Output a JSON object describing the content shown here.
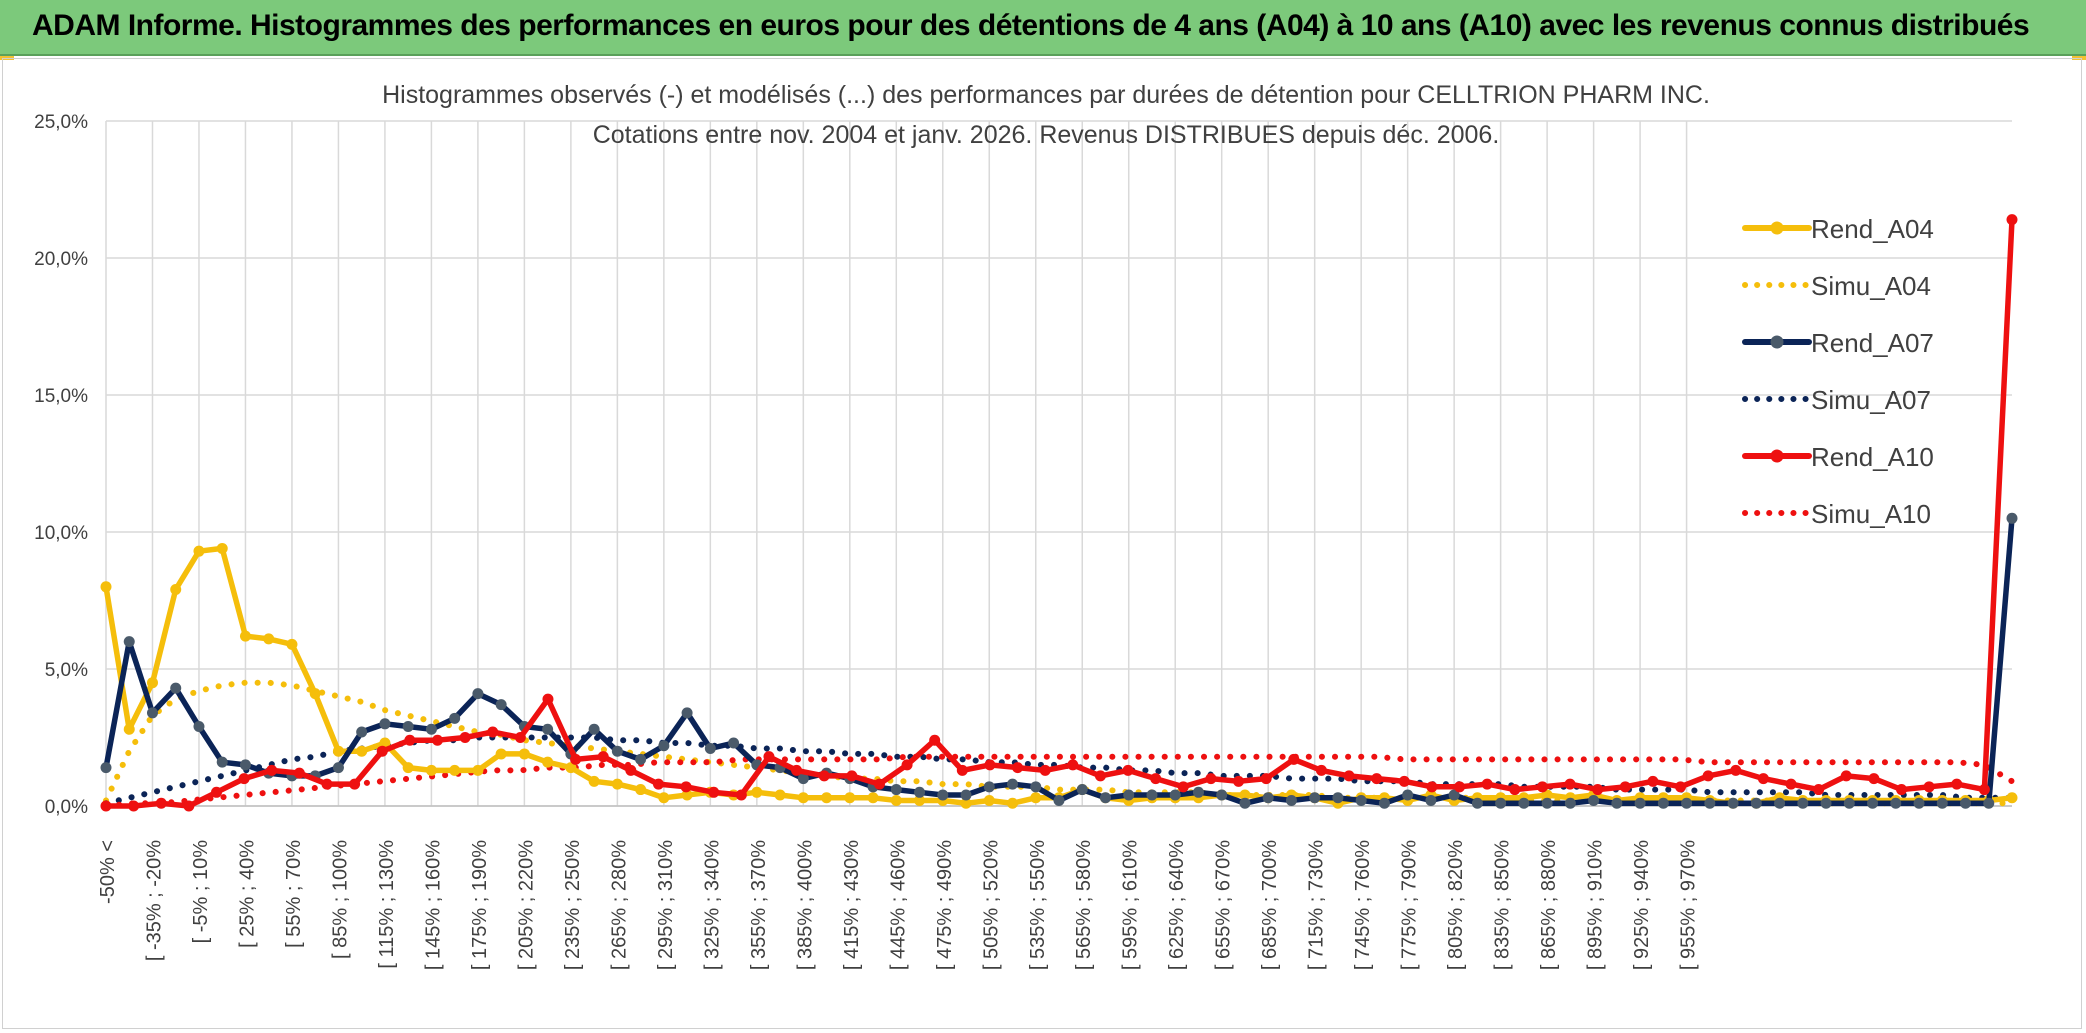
{
  "banner": {
    "title": "ADAM Informe. Histogrammes des performances en euros pour des détentions de 4 ans (A04) à 10 ans (A10) avec les revenus connus distribués"
  },
  "colors": {
    "banner": "#7cc97b",
    "a04": "#f5be0b",
    "a07": "#0b2457",
    "a07_marker": "#4a5a6a",
    "a10": "#ee1010",
    "grid": "#d9d9d9"
  },
  "chart_data": {
    "type": "line",
    "title": "Histogrammes observés (-) et modélisés (...) des performances par durées de détention pour CELLTRION PHARM INC.",
    "subtitle": "Cotations entre nov. 2004 et janv. 2026. Revenus DISTRIBUES depuis déc. 2006.",
    "xlabel": "",
    "ylabel": "",
    "ylim": [
      0,
      25
    ],
    "y_ticks": [
      "0,0%",
      "5,0%",
      "10,0%",
      "15,0%",
      "20,0%",
      "25,0%"
    ],
    "grid": true,
    "legend_position": "right",
    "x_tick_labels": [
      "-50% <",
      "[ -35% ; -20%",
      "[ -5% ; 10%",
      "[ 25% ; 40%",
      "[ 55% ; 70%",
      "[ 85% ; 100%",
      "[ 115% ; 130%",
      "[ 145% ; 160%",
      "[ 175% ; 190%",
      "[ 205% ; 220%",
      "[ 235% ; 250%",
      "[ 265% ; 280%",
      "[ 295% ; 310%",
      "[ 325% ; 340%",
      "[ 355% ; 370%",
      "[ 385% ; 400%",
      "[ 415% ; 430%",
      "[ 445% ; 460%",
      "[ 475% ; 490%",
      "[ 505% ; 520%",
      "[ 535% ; 550%",
      "[ 565% ; 580%",
      "[ 595% ; 610%",
      "[ 625% ; 640%",
      "[ 655% ; 670%",
      "[ 685% ; 700%",
      "[ 715% ; 730%",
      "[ 745% ; 760%",
      "[ 775% ; 790%",
      "[ 805% ; 820%",
      "[ 835% ; 850%",
      "[ 865% ; 880%",
      "[ 895% ; 910%",
      "[ 925% ; 940%",
      "[ 955% ; 970%"
    ],
    "series": [
      {
        "name": "Rend_A04",
        "style": "solid",
        "color": "#f5be0b",
        "values": [
          8.0,
          2.8,
          4.5,
          7.9,
          9.3,
          9.4,
          6.2,
          6.1,
          5.9,
          4.1,
          2.0,
          2.0,
          2.3,
          1.4,
          1.3,
          1.3,
          1.3,
          1.9,
          1.9,
          1.6,
          1.4,
          0.9,
          0.8,
          0.6,
          0.3,
          0.4,
          0.5,
          0.4,
          0.5,
          0.4,
          0.3,
          0.3,
          0.3,
          0.3,
          0.2,
          0.2,
          0.2,
          0.1,
          0.2,
          0.1,
          0.3,
          0.3,
          0.6,
          0.3,
          0.2,
          0.3,
          0.3,
          0.3,
          0.4,
          0.4,
          0.3,
          0.4,
          0.3,
          0.1,
          0.3,
          0.3,
          0.2,
          0.4,
          0.2,
          0.3,
          0.3,
          0.3,
          0.4,
          0.3,
          0.4,
          0.2,
          0.3,
          0.3,
          0.3,
          0.2,
          0.1,
          0.1,
          0.3,
          0.2,
          0.2,
          0.2,
          0.2,
          0.2,
          0.2,
          0.2,
          0.2,
          0.2,
          0.3
        ]
      },
      {
        "name": "Simu_A04",
        "style": "dotted",
        "color": "#f5be0b",
        "values": [
          0.2,
          2.0,
          3.3,
          3.9,
          4.2,
          4.4,
          4.5,
          4.5,
          4.4,
          4.2,
          4.0,
          3.8,
          3.5,
          3.3,
          3.1,
          2.9,
          2.7,
          2.6,
          2.4,
          2.3,
          2.2,
          2.1,
          2.0,
          1.9,
          1.8,
          1.7,
          1.6,
          1.5,
          1.4,
          1.3,
          1.2,
          1.1,
          1.0,
          1.0,
          0.9,
          0.9,
          0.8,
          0.8,
          0.7,
          0.7,
          0.7,
          0.6,
          0.6,
          0.6,
          0.5,
          0.5,
          0.5,
          0.5,
          0.4,
          0.4,
          0.4,
          0.4,
          0.4,
          0.3,
          0.3,
          0.3,
          0.3,
          0.3,
          0.3,
          0.3,
          0.2,
          0.2,
          0.2,
          0.2,
          0.2,
          0.2,
          0.2,
          0.2,
          0.2,
          0.2,
          0.2,
          0.2,
          0.2,
          0.1,
          0.1,
          0.1,
          0.1,
          0.1,
          0.1,
          0.1,
          0.1,
          0.1,
          0.1
        ]
      },
      {
        "name": "Rend_A07",
        "style": "solid",
        "color": "#0b2457",
        "values": [
          1.4,
          6.0,
          3.4,
          4.3,
          2.9,
          1.6,
          1.5,
          1.2,
          1.1,
          1.1,
          1.4,
          2.7,
          3.0,
          2.9,
          2.8,
          3.2,
          4.1,
          3.7,
          2.9,
          2.8,
          1.9,
          2.8,
          2.0,
          1.7,
          2.2,
          3.4,
          2.1,
          2.3,
          1.5,
          1.4,
          1.0,
          1.2,
          1.0,
          0.7,
          0.6,
          0.5,
          0.4,
          0.4,
          0.7,
          0.8,
          0.7,
          0.2,
          0.6,
          0.3,
          0.4,
          0.4,
          0.4,
          0.5,
          0.4,
          0.1,
          0.3,
          0.2,
          0.3,
          0.3,
          0.2,
          0.1,
          0.4,
          0.2,
          0.4,
          0.1,
          0.1,
          0.1,
          0.1,
          0.1,
          0.2,
          0.1,
          0.1,
          0.1,
          0.1,
          0.1,
          0.1,
          0.1,
          0.1,
          0.1,
          0.1,
          0.1,
          0.1,
          0.1,
          0.1,
          0.1,
          0.1,
          0.1,
          10.5
        ]
      },
      {
        "name": "Simu_A07",
        "style": "dotted",
        "color": "#0b2457",
        "values": [
          0.1,
          0.3,
          0.5,
          0.7,
          0.9,
          1.1,
          1.3,
          1.5,
          1.7,
          1.8,
          2.0,
          2.1,
          2.2,
          2.3,
          2.4,
          2.4,
          2.5,
          2.5,
          2.5,
          2.5,
          2.5,
          2.5,
          2.4,
          2.4,
          2.3,
          2.3,
          2.2,
          2.2,
          2.1,
          2.1,
          2.0,
          2.0,
          1.9,
          1.9,
          1.8,
          1.8,
          1.7,
          1.7,
          1.6,
          1.6,
          1.5,
          1.5,
          1.4,
          1.4,
          1.3,
          1.3,
          1.2,
          1.2,
          1.1,
          1.1,
          1.1,
          1.0,
          1.0,
          1.0,
          0.9,
          0.9,
          0.9,
          0.8,
          0.8,
          0.8,
          0.8,
          0.7,
          0.7,
          0.7,
          0.7,
          0.6,
          0.6,
          0.6,
          0.6,
          0.5,
          0.5,
          0.5,
          0.5,
          0.5,
          0.4,
          0.4,
          0.4,
          0.4,
          0.4,
          0.4,
          0.3,
          0.3,
          0.3
        ]
      },
      {
        "name": "Rend_A10",
        "style": "solid",
        "color": "#ee1010",
        "values": [
          0.0,
          0.0,
          0.1,
          0.0,
          0.5,
          1.0,
          1.3,
          1.2,
          0.8,
          0.8,
          2.0,
          2.4,
          2.4,
          2.5,
          2.7,
          2.5,
          3.9,
          1.7,
          1.8,
          1.3,
          0.8,
          0.7,
          0.5,
          0.4,
          1.8,
          1.3,
          1.1,
          1.1,
          0.8,
          1.5,
          2.4,
          1.3,
          1.5,
          1.4,
          1.3,
          1.5,
          1.1,
          1.3,
          1.0,
          0.7,
          1.0,
          0.9,
          1.0,
          1.7,
          1.3,
          1.1,
          1.0,
          0.9,
          0.7,
          0.7,
          0.8,
          0.6,
          0.7,
          0.8,
          0.6,
          0.7,
          0.9,
          0.7,
          1.1,
          1.3,
          1.0,
          0.8,
          0.6,
          1.1,
          1.0,
          0.6,
          0.7,
          0.8,
          0.6,
          21.4
        ]
      },
      {
        "name": "Simu_A10",
        "style": "dotted",
        "color": "#ee1010",
        "values": [
          0.0,
          0.1,
          0.1,
          0.2,
          0.3,
          0.4,
          0.5,
          0.6,
          0.7,
          0.8,
          0.9,
          1.0,
          1.1,
          1.2,
          1.3,
          1.3,
          1.4,
          1.4,
          1.5,
          1.5,
          1.6,
          1.6,
          1.6,
          1.7,
          1.7,
          1.7,
          1.7,
          1.7,
          1.7,
          1.8,
          1.8,
          1.8,
          1.8,
          1.8,
          1.8,
          1.8,
          1.8,
          1.8,
          1.8,
          1.8,
          1.8,
          1.8,
          1.8,
          1.8,
          1.8,
          1.8,
          1.8,
          1.7,
          1.7,
          1.7,
          1.7,
          1.7,
          1.7,
          1.7,
          1.7,
          1.7,
          1.7,
          1.7,
          1.6,
          1.6,
          1.6,
          1.6,
          1.6,
          1.6,
          1.6,
          1.6,
          1.6,
          1.6,
          1.5,
          0.9
        ]
      }
    ]
  }
}
